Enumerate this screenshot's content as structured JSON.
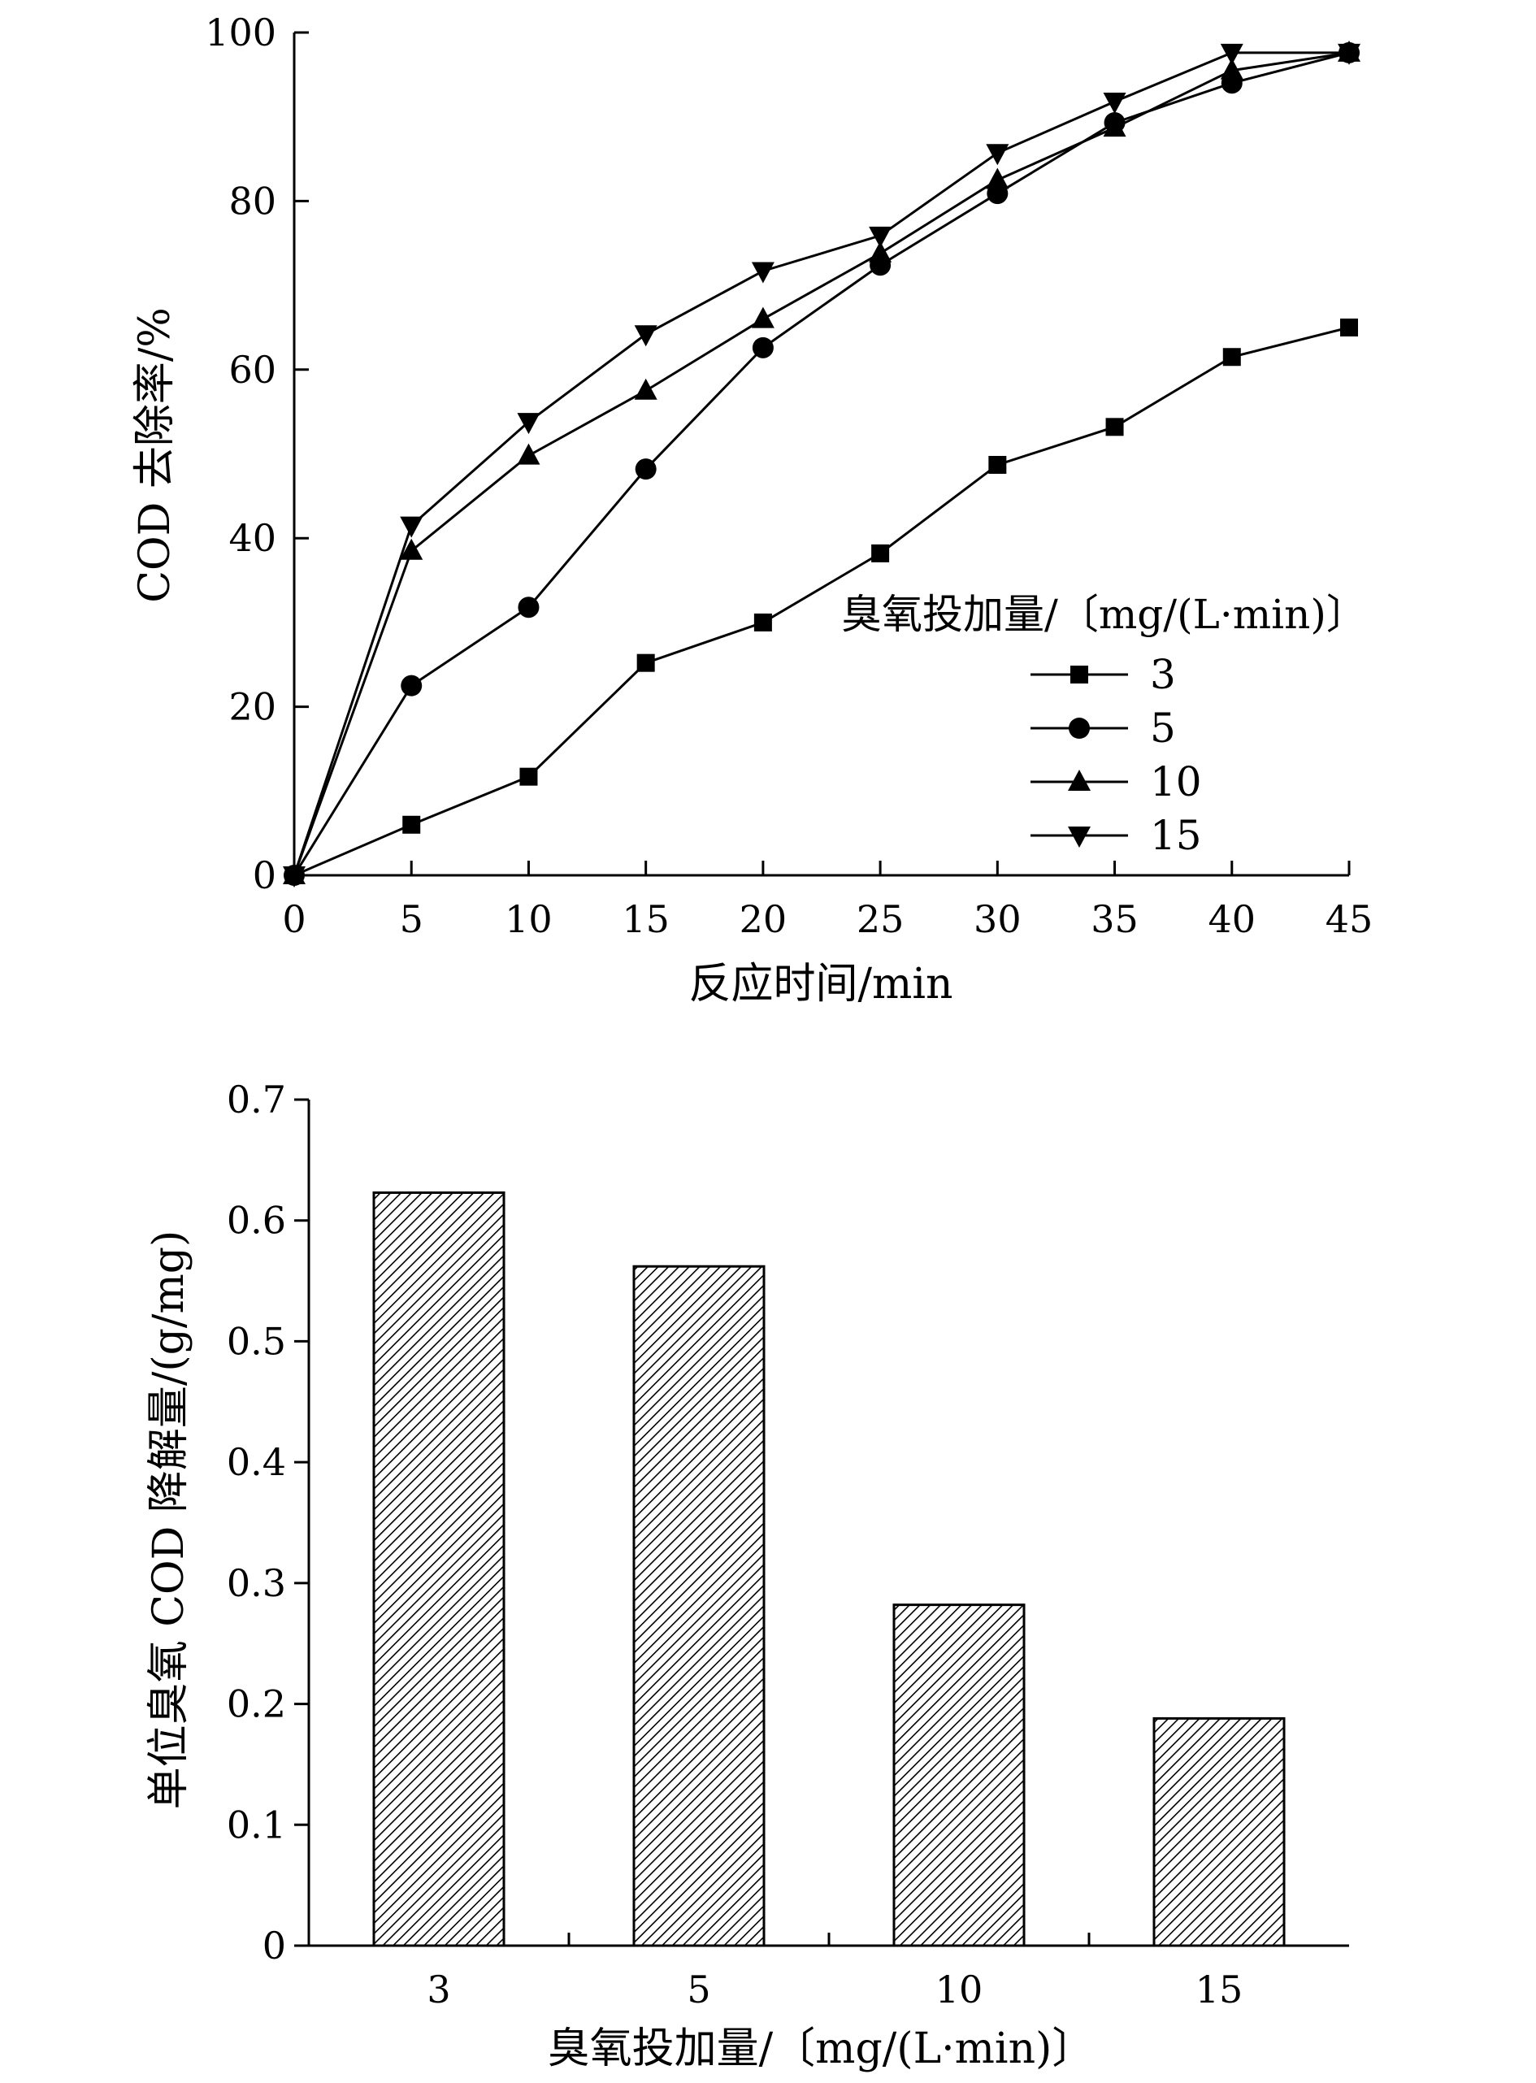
{
  "chart_data": [
    {
      "type": "line",
      "xlabel": "反应时间/min",
      "ylabel": "COD 去除率/%",
      "xlim": [
        0,
        45
      ],
      "ylim": [
        0,
        100
      ],
      "xticks": [
        "0",
        "5",
        "10",
        "15",
        "20",
        "25",
        "30",
        "35",
        "40",
        "45"
      ],
      "yticks": [
        "0",
        "20",
        "40",
        "60",
        "80",
        "100"
      ],
      "grid": false,
      "legend": {
        "title": "臭氧投加量/〔mg/(L·min)〕",
        "placement": "center-right"
      },
      "x": [
        0,
        5,
        10,
        15,
        20,
        25,
        30,
        35,
        40,
        45
      ],
      "series": [
        {
          "name": "3",
          "marker": "square",
          "values": [
            0,
            6,
            11.7,
            25.2,
            30,
            38.2,
            48.7,
            53.2,
            61.5,
            65
          ]
        },
        {
          "name": "5",
          "marker": "circle",
          "values": [
            0,
            22.5,
            31.8,
            48.2,
            62.6,
            72.4,
            80.9,
            89.3,
            94,
            97.6
          ]
        },
        {
          "name": "10",
          "marker": "triangle-up",
          "values": [
            0,
            38.5,
            49.8,
            57.5,
            66,
            73.8,
            82.5,
            88.7,
            95.5,
            97.6
          ]
        },
        {
          "name": "15",
          "marker": "triangle-down",
          "values": [
            0,
            41.5,
            53.8,
            64.2,
            71.7,
            75.9,
            85.7,
            91.8,
            97.6,
            97.6
          ]
        }
      ]
    },
    {
      "type": "bar",
      "xlabel": "臭氧投加量/〔mg/(L·min)〕",
      "ylabel": "单位臭氧 COD 降解量/(g/mg)",
      "ylim": [
        0,
        0.7
      ],
      "yticks": [
        "0",
        "0.1",
        "0.2",
        "0.3",
        "0.4",
        "0.5",
        "0.6",
        "0.7"
      ],
      "grid": false,
      "categories": [
        "3",
        "5",
        "10",
        "15"
      ],
      "values": [
        0.623,
        0.562,
        0.282,
        0.188
      ]
    }
  ]
}
